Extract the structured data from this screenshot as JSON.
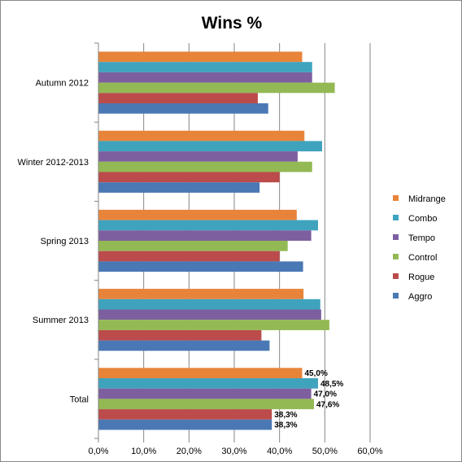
{
  "chart_data": {
    "type": "bar",
    "orientation": "horizontal",
    "title": "Wins %",
    "xlabel": "",
    "ylabel": "",
    "xlim": [
      0,
      60
    ],
    "x_ticks": [
      "0,0%",
      "10,0%",
      "20,0%",
      "30,0%",
      "40,0%",
      "50,0%",
      "60,0%"
    ],
    "x_tick_values": [
      0,
      10,
      20,
      30,
      40,
      50,
      60
    ],
    "grid": true,
    "legend_position": "right",
    "categories": [
      "Autumn 2012",
      "Winter 2012-2013",
      "Spring 2013",
      "Summer 2013",
      "Total"
    ],
    "series": [
      {
        "name": "Midrange",
        "color": "#E8843A",
        "values": [
          45.0,
          45.5,
          43.8,
          45.3,
          45.0
        ]
      },
      {
        "name": "Combo",
        "color": "#3FA3BE",
        "values": [
          47.2,
          49.4,
          48.5,
          49.0,
          48.5
        ]
      },
      {
        "name": "Tempo",
        "color": "#7D5FA0",
        "values": [
          47.2,
          44.0,
          47.0,
          49.2,
          47.0
        ]
      },
      {
        "name": "Control",
        "color": "#93B954",
        "values": [
          52.2,
          47.2,
          41.8,
          51.0,
          47.6
        ]
      },
      {
        "name": "Rogue",
        "color": "#BC4B4B",
        "values": [
          35.2,
          40.0,
          40.0,
          36.0,
          38.3
        ]
      },
      {
        "name": "Aggro",
        "color": "#4A78B5",
        "values": [
          37.5,
          35.6,
          45.2,
          37.8,
          38.3
        ]
      }
    ],
    "legend_order": [
      "Midrange",
      "Combo",
      "Tempo",
      "Control",
      "Rogue",
      "Aggro"
    ],
    "data_labels": {
      "category": "Total",
      "labels": [
        "45,0%",
        "48,5%",
        "47,0%",
        "47,6%",
        "38,3%",
        "38,3%"
      ]
    }
  }
}
